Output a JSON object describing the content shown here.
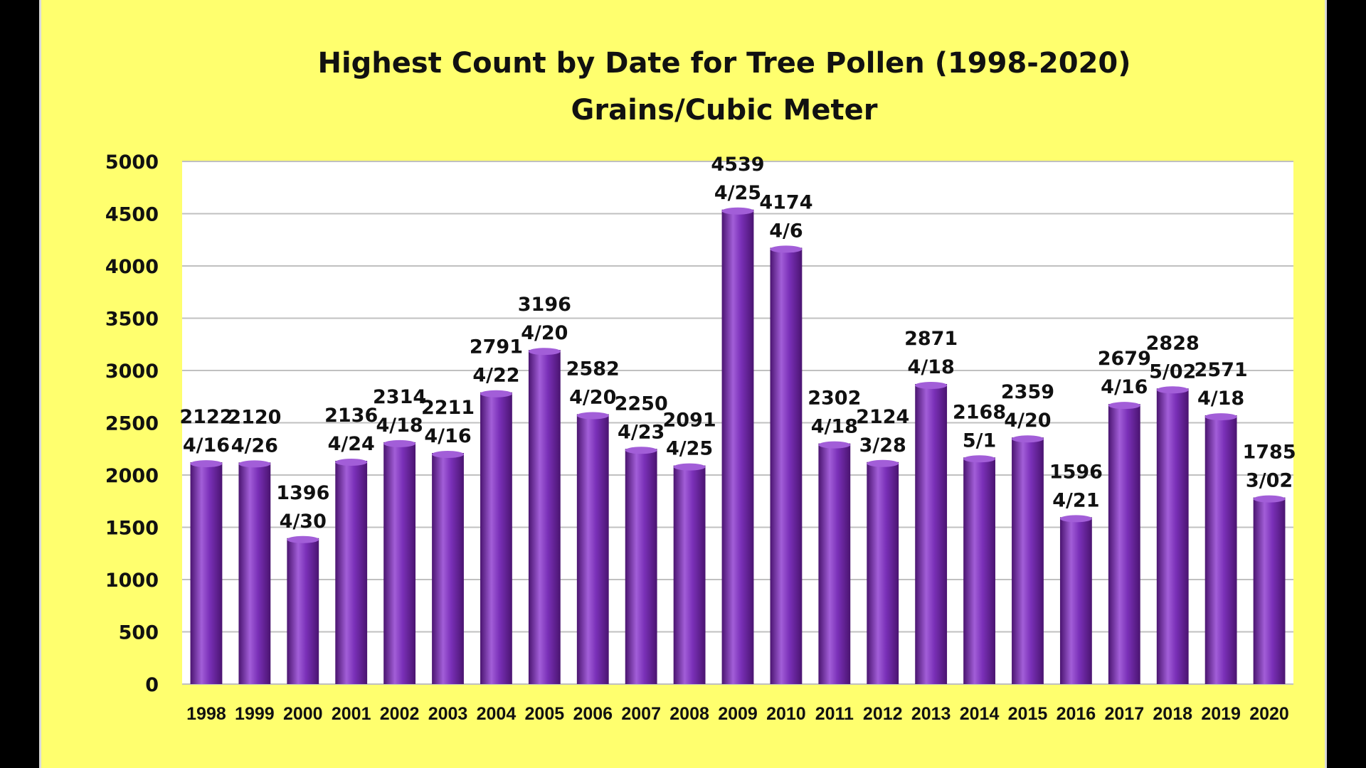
{
  "chart_data": {
    "type": "bar",
    "title": "Highest Count by Date for Tree Pollen (1998-2020)",
    "subtitle": "Grains/Cubic Meter",
    "xlabel": "",
    "ylabel": "",
    "ylim": [
      0,
      5000
    ],
    "yticks": [
      "0",
      "500",
      "1000",
      "1500",
      "2000",
      "2500",
      "3000",
      "3500",
      "4000",
      "4500",
      "5000"
    ],
    "grid": true,
    "legend": "none",
    "categories": [
      "1998",
      "1999",
      "2000",
      "2001",
      "2002",
      "2003",
      "2004",
      "2005",
      "2006",
      "2007",
      "2008",
      "2009",
      "2010",
      "2011",
      "2012",
      "2013",
      "2014",
      "2015",
      "2016",
      "2017",
      "2018",
      "2019",
      "2020"
    ],
    "values": [
      2122,
      2120,
      1396,
      2136,
      2314,
      2211,
      2791,
      3196,
      2582,
      2250,
      2091,
      4539,
      4174,
      2302,
      2124,
      2871,
      2168,
      2359,
      1596,
      2679,
      2828,
      2571,
      1785
    ],
    "dates": [
      "4/16",
      "4/26",
      "4/30",
      "4/24",
      "4/18",
      "4/16",
      "4/22",
      "4/20",
      "4/20",
      "4/23",
      "4/25",
      "4/25",
      "4/6",
      "4/18",
      "3/28",
      "4/18",
      "5/1",
      "4/20",
      "4/21",
      "4/16",
      "5/02",
      "4/18",
      "3/02"
    ],
    "colors": {
      "bar": "#7a30b8",
      "bar_dark": "#4a1470",
      "bar_light": "#a25ed8",
      "background": "#ffff6e",
      "plot_area": "#ffffff",
      "grid": "#c0c0c0"
    }
  }
}
